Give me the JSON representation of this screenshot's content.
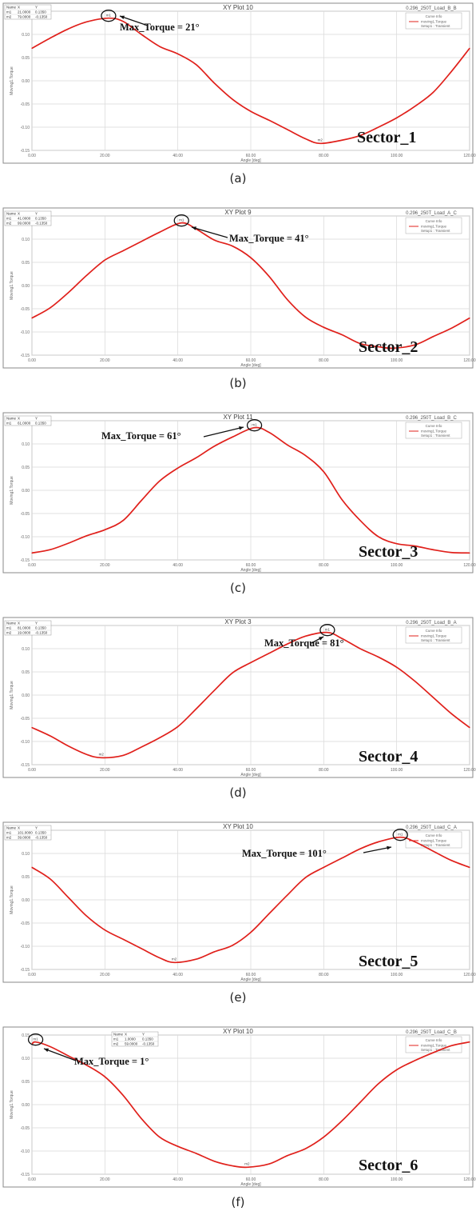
{
  "colors": {
    "curve": "#e0201b",
    "frame": "#8a8a8a",
    "grid": "#d8d8d8"
  },
  "chart_data": [
    {
      "type": "line",
      "panel": "a",
      "caption": "(a)",
      "title": "XY Plot 10",
      "subtitle": "0.296_250T_Load_B_B",
      "legend": [
        "Curve Info",
        "moving1.Torque",
        "Setup1 : Transient"
      ],
      "xlabel": "Angle [deg]",
      "ylabel": "Moving1.Torque",
      "xlim": [
        0,
        120
      ],
      "ylim": [
        -0.15,
        0.15
      ],
      "x_ticks": [
        "0.00",
        "20.00",
        "40.00",
        "60.00",
        "80.00",
        "100.00",
        "120.00"
      ],
      "y_ticks": [
        "-0.15",
        "-0.10",
        "-0.05",
        "0.00",
        "0.05",
        "0.10",
        "0.15"
      ],
      "marker_table": {
        "header": [
          "Name",
          "X",
          "Y"
        ],
        "rows": [
          [
            "m1",
            "21.0000",
            "0.1350"
          ],
          [
            "m2",
            "79.0000",
            "-0.1350"
          ]
        ]
      },
      "points": [
        {
          "label": "m1",
          "x": 21
        },
        {
          "label": "m2",
          "x": 79
        }
      ],
      "annotation": "Max_Torque = 21°",
      "sector": "Sector_1",
      "x": [
        0,
        5,
        10,
        15,
        21,
        25,
        30,
        35,
        40,
        45,
        50,
        55,
        60,
        65,
        70,
        75,
        79,
        85,
        90,
        95,
        100,
        105,
        110,
        115,
        120
      ],
      "y": [
        0.07,
        0.092,
        0.112,
        0.127,
        0.135,
        0.128,
        0.1,
        0.074,
        0.058,
        0.035,
        -0.005,
        -0.04,
        -0.066,
        -0.085,
        -0.105,
        -0.125,
        -0.135,
        -0.128,
        -0.118,
        -0.1,
        -0.08,
        -0.055,
        -0.025,
        0.02,
        0.07
      ]
    },
    {
      "type": "line",
      "panel": "b",
      "caption": "(b)",
      "title": "XY Plot 9",
      "subtitle": "0.296_250T_Load_A_C",
      "legend": [
        "Curve Info",
        "moving1.Torque",
        "Setup1 : Transient"
      ],
      "xlabel": "Angle [deg]",
      "ylabel": "Moving1.Torque",
      "xlim": [
        0,
        120
      ],
      "ylim": [
        -0.15,
        0.15
      ],
      "x_ticks": [
        "0.00",
        "20.00",
        "40.00",
        "60.00",
        "80.00",
        "100.00",
        "120.00"
      ],
      "y_ticks": [
        "-0.15",
        "-0.10",
        "-0.05",
        "0.00",
        "0.05",
        "0.10",
        "0.15"
      ],
      "marker_table": {
        "header": [
          "Name",
          "X",
          "Y"
        ],
        "rows": [
          [
            "m1",
            "41.0000",
            "0.1350"
          ],
          [
            "m2",
            "99.0000",
            "-0.1350"
          ]
        ]
      },
      "points": [
        {
          "label": "m1",
          "x": 41
        }
      ],
      "annotation": "Max_Torque = 41°",
      "sector": "Sector_2",
      "x": [
        0,
        5,
        10,
        15,
        20,
        25,
        30,
        35,
        41,
        45,
        50,
        55,
        60,
        65,
        70,
        75,
        80,
        85,
        90,
        95,
        99,
        105,
        110,
        115,
        120
      ],
      "y": [
        -0.07,
        -0.048,
        -0.015,
        0.022,
        0.055,
        0.075,
        0.095,
        0.115,
        0.135,
        0.122,
        0.098,
        0.085,
        0.06,
        0.02,
        -0.03,
        -0.068,
        -0.09,
        -0.106,
        -0.125,
        -0.132,
        -0.135,
        -0.128,
        -0.11,
        -0.092,
        -0.07
      ]
    },
    {
      "type": "line",
      "panel": "c",
      "caption": "(c)",
      "title": "XY Plot 11",
      "subtitle": "0.296_250T_Load_B_C",
      "legend": [
        "Curve Info",
        "moving1.Torque",
        "Setup1 : Transient"
      ],
      "xlabel": "Angle [deg]",
      "ylabel": "Moving1.Torque",
      "xlim": [
        0,
        120
      ],
      "ylim": [
        -0.15,
        0.15
      ],
      "x_ticks": [
        "0.00",
        "20.00",
        "40.00",
        "60.00",
        "80.00",
        "100.00",
        "120.00"
      ],
      "y_ticks": [
        "-0.15",
        "-0.10",
        "-0.05",
        "0.00",
        "0.05",
        "0.10",
        "0.15"
      ],
      "marker_table": {
        "header": [
          "Name",
          "X",
          "Y"
        ],
        "rows": [
          [
            "m1",
            "61.0000",
            "0.1350"
          ]
        ]
      },
      "points": [
        {
          "label": "m1",
          "x": 61
        }
      ],
      "annotation": "Max_Torque = 61°",
      "sector": "Sector_3",
      "x": [
        0,
        5,
        10,
        15,
        20,
        25,
        30,
        35,
        40,
        45,
        50,
        55,
        61,
        65,
        70,
        75,
        80,
        85,
        90,
        95,
        100,
        105,
        110,
        115,
        120
      ],
      "y": [
        -0.135,
        -0.128,
        -0.114,
        -0.098,
        -0.085,
        -0.065,
        -0.022,
        0.02,
        0.048,
        0.07,
        0.095,
        0.115,
        0.135,
        0.125,
        0.098,
        0.075,
        0.04,
        -0.02,
        -0.065,
        -0.1,
        -0.115,
        -0.12,
        -0.128,
        -0.134,
        -0.135
      ]
    },
    {
      "type": "line",
      "panel": "d",
      "caption": "(d)",
      "title": "XY Plot 3",
      "subtitle": "0.296_250T_Load_B_A",
      "legend": [
        "Curve Info",
        "moving1.Torque",
        "Setup1 : Transient"
      ],
      "xlabel": "Angle [deg]",
      "ylabel": "Moving1.Torque",
      "xlim": [
        0,
        120
      ],
      "ylim": [
        -0.15,
        0.15
      ],
      "x_ticks": [
        "0.00",
        "20.00",
        "40.00",
        "60.00",
        "80.00",
        "100.00",
        "120.00"
      ],
      "y_ticks": [
        "-0.15",
        "-0.10",
        "-0.05",
        "0.00",
        "0.05",
        "0.10",
        "0.15"
      ],
      "marker_table": {
        "header": [
          "Name",
          "X",
          "Y"
        ],
        "rows": [
          [
            "m1",
            "81.0000",
            "0.1350"
          ],
          [
            "m2",
            "19.0000",
            "-0.1350"
          ]
        ]
      },
      "points": [
        {
          "label": "m1",
          "x": 81
        },
        {
          "label": "m2",
          "x": 19
        }
      ],
      "annotation": "Max_Torque = 81°",
      "sector": "Sector_4",
      "x": [
        0,
        5,
        10,
        15,
        19,
        25,
        30,
        35,
        40,
        45,
        50,
        55,
        60,
        65,
        70,
        75,
        81,
        85,
        90,
        95,
        100,
        105,
        110,
        115,
        120
      ],
      "y": [
        -0.07,
        -0.088,
        -0.11,
        -0.128,
        -0.135,
        -0.13,
        -0.112,
        -0.092,
        -0.068,
        -0.03,
        0.01,
        0.048,
        0.07,
        0.09,
        0.11,
        0.127,
        0.135,
        0.122,
        0.1,
        0.082,
        0.06,
        0.03,
        -0.005,
        -0.04,
        -0.07
      ]
    },
    {
      "type": "line",
      "panel": "e",
      "caption": "(e)",
      "title": "XY Plot 10",
      "subtitle": "0.296_250T_Load_C_A",
      "legend": [
        "Curve Info",
        "moving1.Torque",
        "Setup1 : Transient"
      ],
      "xlabel": "Angle [deg]",
      "ylabel": "Moving1.Torque",
      "xlim": [
        0,
        120
      ],
      "ylim": [
        -0.15,
        0.15
      ],
      "x_ticks": [
        "0.00",
        "20.00",
        "40.00",
        "60.00",
        "80.00",
        "100.00",
        "120.00"
      ],
      "y_ticks": [
        "-0.15",
        "-0.10",
        "-0.05",
        "0.00",
        "0.05",
        "0.10",
        "0.15"
      ],
      "marker_table": {
        "header": [
          "Name",
          "X",
          "Y"
        ],
        "rows": [
          [
            "m1",
            "101.0000",
            "0.1350"
          ],
          [
            "m2",
            "39.0000",
            "-0.1350"
          ]
        ]
      },
      "points": [
        {
          "label": "m1",
          "x": 101
        },
        {
          "label": "m2",
          "x": 39
        }
      ],
      "annotation": "Max_Torque = 101°",
      "sector": "Sector_5",
      "x": [
        0,
        5,
        10,
        15,
        20,
        25,
        30,
        35,
        39,
        45,
        50,
        55,
        60,
        65,
        70,
        75,
        80,
        85,
        90,
        95,
        101,
        105,
        110,
        115,
        120
      ],
      "y": [
        0.07,
        0.045,
        0.005,
        -0.035,
        -0.065,
        -0.085,
        -0.105,
        -0.125,
        -0.135,
        -0.128,
        -0.112,
        -0.098,
        -0.07,
        -0.03,
        0.01,
        0.048,
        0.07,
        0.09,
        0.11,
        0.125,
        0.135,
        0.125,
        0.105,
        0.085,
        0.07
      ]
    },
    {
      "type": "line",
      "panel": "f",
      "caption": "(f)",
      "title": "XY Plot 10",
      "subtitle": "0.296_250T_Load_C_B",
      "legend": [
        "Curve Info",
        "moving1.Torque",
        "Setup1 : Transient"
      ],
      "xlabel": "Angle [deg]",
      "ylabel": "Moving1.Torque",
      "xlim": [
        0,
        120
      ],
      "ylim": [
        -0.15,
        0.15
      ],
      "x_ticks": [
        "0.00",
        "20.00",
        "40.00",
        "60.00",
        "80.00",
        "100.00",
        "120.00"
      ],
      "y_ticks": [
        "-0.15",
        "-0.10",
        "-0.05",
        "0.00",
        "0.05",
        "0.10",
        "0.15"
      ],
      "marker_table": {
        "header": [
          "Name",
          "X",
          "Y"
        ],
        "rows": [
          [
            "m1",
            "1.0000",
            "0.1350"
          ],
          [
            "m2",
            "59.0000",
            "-0.1350"
          ]
        ]
      },
      "points": [
        {
          "label": "m1",
          "x": 1
        },
        {
          "label": "m2",
          "x": 59
        }
      ],
      "annotation": "Max_Torque = 1°",
      "sector": "Sector_6",
      "x": [
        0,
        1,
        5,
        10,
        15,
        20,
        25,
        30,
        35,
        40,
        45,
        50,
        55,
        59,
        65,
        70,
        75,
        80,
        85,
        90,
        95,
        100,
        105,
        110,
        115,
        120
      ],
      "y": [
        0.13,
        0.135,
        0.125,
        0.105,
        0.085,
        0.06,
        0.02,
        -0.03,
        -0.07,
        -0.09,
        -0.105,
        -0.122,
        -0.132,
        -0.135,
        -0.128,
        -0.11,
        -0.095,
        -0.07,
        -0.035,
        0.005,
        0.045,
        0.075,
        0.095,
        0.112,
        0.127,
        0.135
      ]
    }
  ]
}
